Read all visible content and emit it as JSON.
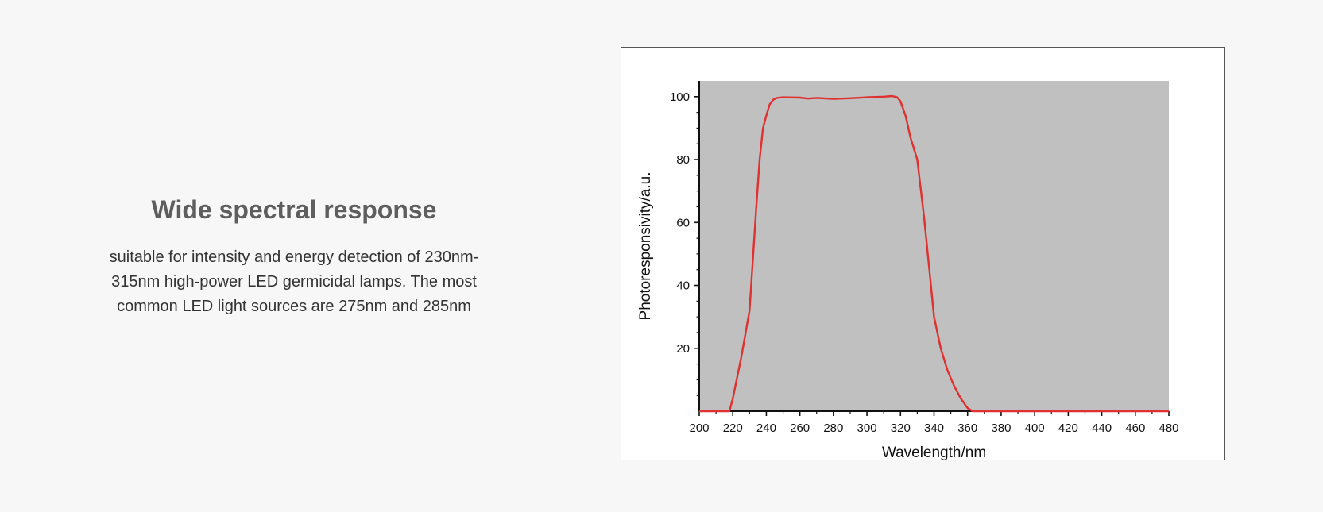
{
  "section": {
    "title": "Wide spectral response",
    "description": "suitable for intensity and energy detection of 230nm-315nm high-power LED germicidal lamps. The most common LED light sources are 275nm and 285nm"
  },
  "chart_data": {
    "type": "line",
    "xlabel": "Wavelength/nm",
    "ylabel": "Photoresponsivity/a.u.",
    "xlim": [
      200,
      480
    ],
    "ylim": [
      0,
      105
    ],
    "xticks": [
      200,
      220,
      240,
      260,
      280,
      300,
      320,
      340,
      360,
      380,
      400,
      420,
      440,
      460,
      480
    ],
    "yticks": [
      20,
      40,
      60,
      80,
      100
    ],
    "plot_background": "#c0c0c0",
    "line_color": "#e03030",
    "grid": false,
    "series": [
      {
        "x": [
          200,
          218,
          220,
          225,
          230,
          234,
          236,
          238,
          240,
          242,
          244,
          246,
          250,
          260,
          265,
          270,
          280,
          290,
          300,
          310,
          315,
          318,
          320,
          323,
          326,
          330,
          334,
          337,
          340,
          344,
          348,
          352,
          356,
          360,
          363,
          366,
          380,
          400,
          420,
          440,
          460,
          480
        ],
        "y": [
          0,
          0,
          4,
          17,
          32,
          65,
          80,
          90,
          94,
          97.5,
          99,
          99.6,
          99.8,
          99.7,
          99.4,
          99.6,
          99.3,
          99.5,
          99.8,
          100,
          100.2,
          99.8,
          98.5,
          94,
          87,
          80,
          62,
          46,
          30,
          20,
          13,
          8,
          4,
          1,
          0,
          0,
          0,
          0,
          0,
          0,
          0,
          0
        ]
      }
    ]
  }
}
